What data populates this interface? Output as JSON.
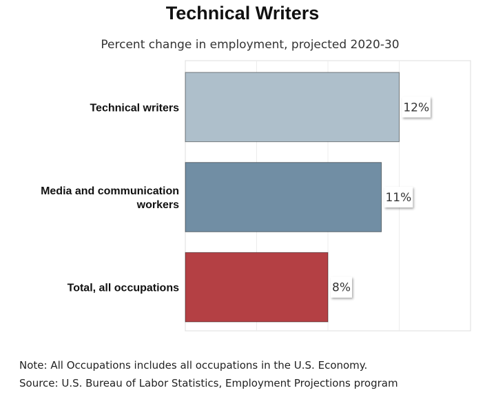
{
  "chart_data": {
    "type": "bar",
    "orientation": "horizontal",
    "title": "Technical Writers",
    "subtitle": "Percent change in employment, projected 2020-30",
    "categories": [
      "Technical writers",
      "Media and communication workers",
      "Total, all occupations"
    ],
    "category_lines": [
      [
        "Technical writers"
      ],
      [
        "Media and communication",
        "workers"
      ],
      [
        "Total, all occupations"
      ]
    ],
    "values": [
      12,
      11,
      8
    ],
    "value_labels": [
      "12%",
      "11%",
      "8%"
    ],
    "colors": [
      "#aebfcb",
      "#718ea4",
      "#b44044"
    ],
    "xlim": [
      0,
      16
    ],
    "grid": true,
    "legend": "none"
  },
  "notes": {
    "note": "Note: All Occupations includes all occupations in the U.S. Economy.",
    "source": "Source: U.S. Bureau of Labor Statistics, Employment Projections program"
  }
}
